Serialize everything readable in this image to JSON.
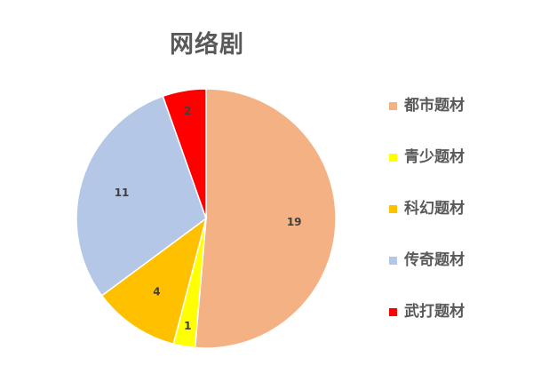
{
  "chart_data": {
    "type": "pie",
    "title": "网络剧",
    "categories": [
      "都市题材",
      "青少题材",
      "科幻题材",
      "传奇题材",
      "武打题材"
    ],
    "values": [
      19,
      1,
      4,
      11,
      2
    ],
    "data_labels": [
      "19",
      "1",
      "4",
      "11",
      "2"
    ],
    "colors": [
      "#F4B183",
      "#FFFF00",
      "#FFC000",
      "#B4C7E7",
      "#FF0000"
    ],
    "start_angle_deg": 0,
    "direction": "clockwise",
    "legend_position": "right"
  }
}
